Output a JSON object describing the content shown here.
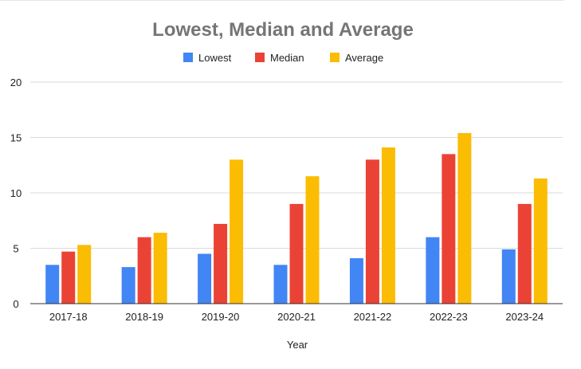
{
  "chart_data": {
    "type": "bar",
    "title": "Lowest, Median and Average",
    "xlabel": "Year",
    "ylabel": "",
    "categories": [
      "2017-18",
      "2018-19",
      "2019-20",
      "2020-21",
      "2021-22",
      "2022-23",
      "2023-24"
    ],
    "series": [
      {
        "name": "Lowest",
        "color": "#4285f4",
        "values": [
          3.5,
          3.3,
          4.5,
          3.5,
          4.1,
          6.0,
          4.9
        ]
      },
      {
        "name": "Median",
        "color": "#ea4335",
        "values": [
          4.7,
          6.0,
          7.2,
          9.0,
          13.0,
          13.5,
          9.0
        ]
      },
      {
        "name": "Average",
        "color": "#fbbc04",
        "values": [
          5.3,
          6.4,
          13.0,
          11.5,
          14.1,
          15.4,
          11.3
        ]
      }
    ],
    "ylim": [
      0,
      20
    ],
    "yticks": [
      0,
      5,
      10,
      15,
      20
    ],
    "grid": true,
    "legend": "top-center"
  }
}
